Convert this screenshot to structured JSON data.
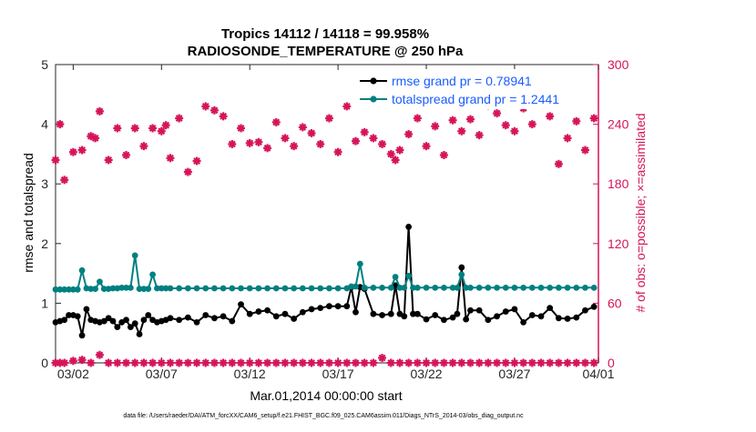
{
  "chart_data": {
    "type": "line",
    "title": [
      "Tropics 14112 / 14118 = 99.958%",
      "RADIOSONDE_TEMPERATURE @ 250 hPa"
    ],
    "xlabel": "Mar.01,2014 00:00:00 start",
    "ylabel_left": "rmse and totalspread",
    "ylabel_right": "# of obs: o=possible; ×=assimilated",
    "xlim": [
      0.5,
      31.25
    ],
    "ylim_left": [
      0,
      5
    ],
    "ylim_right": [
      0,
      300
    ],
    "x_ticks": [
      1.5,
      6.5,
      11.5,
      16.5,
      21.5,
      26.5,
      31.5
    ],
    "x_tick_labels": [
      "03/02",
      "03/07",
      "03/12",
      "03/17",
      "03/22",
      "03/27",
      "04/01"
    ],
    "y_ticks_left": [
      0,
      1,
      2,
      3,
      4,
      5
    ],
    "y_tick_labels_left": [
      "0",
      "1",
      "2",
      "3",
      "4",
      "5"
    ],
    "y_ticks_right": [
      0,
      60,
      120,
      180,
      240,
      300
    ],
    "y_tick_labels_right": [
      "0",
      "60",
      "120",
      "180",
      "240",
      "300"
    ],
    "colors": {
      "rmse": "#000000",
      "spread": "#008080",
      "obs": "#d6145a",
      "right_axis": "#d6145a",
      "legend_text": "#1a5cff"
    },
    "legend": [
      "rmse grand pr = 0.78941",
      "totalspread grand pr = 1.2441"
    ],
    "footnote": "data file: /Users/raeder/DAI/ATM_forcXX/CAM6_setup/f.e21.FHIST_BGC.f09_025.CAM6assim.011/Diags_NTrS_2014-03/obs_diag_output.nc",
    "x": [
      0.5,
      0.75,
      1.0,
      1.25,
      1.5,
      1.75,
      2.0,
      2.25,
      2.5,
      2.75,
      3.0,
      3.25,
      3.5,
      3.75,
      4.0,
      4.25,
      4.5,
      4.75,
      5.0,
      5.25,
      5.5,
      5.75,
      6.0,
      6.25,
      6.5,
      6.75,
      7.0,
      7.5,
      8.0,
      8.5,
      9.0,
      9.5,
      10.0,
      10.5,
      11.0,
      11.5,
      12.0,
      12.5,
      13.0,
      13.5,
      14.0,
      14.5,
      15.0,
      15.5,
      16.0,
      16.5,
      17.0,
      17.25,
      17.5,
      17.75,
      18.0,
      18.5,
      19.0,
      19.5,
      19.75,
      20.0,
      20.25,
      20.5,
      20.75,
      21.0,
      21.5,
      22.0,
      22.5,
      23.0,
      23.25,
      23.5,
      23.75,
      24.0,
      24.5,
      25.0,
      25.5,
      26.0,
      26.5,
      27.0,
      27.5,
      28.0,
      28.5,
      29.0,
      29.5,
      30.0,
      30.5,
      31.0
    ],
    "series": [
      {
        "name": "rmse",
        "values": [
          0.68,
          0.7,
          0.72,
          0.8,
          0.8,
          0.78,
          0.46,
          0.9,
          0.72,
          0.7,
          0.68,
          0.7,
          0.75,
          0.7,
          0.6,
          0.68,
          0.72,
          0.6,
          0.66,
          0.48,
          0.72,
          0.8,
          0.72,
          0.68,
          0.7,
          0.72,
          0.75,
          0.72,
          0.76,
          0.68,
          0.8,
          0.75,
          0.78,
          0.7,
          0.98,
          0.82,
          0.86,
          0.88,
          0.78,
          0.82,
          0.74,
          0.85,
          0.9,
          0.92,
          0.95,
          0.95,
          0.95,
          1.27,
          0.85,
          1.27,
          1.24,
          0.82,
          0.8,
          0.82,
          1.3,
          0.82,
          0.78,
          2.28,
          0.82,
          0.82,
          0.73,
          0.8,
          0.72,
          0.76,
          0.82,
          1.6,
          0.73,
          0.88,
          0.88,
          0.72,
          0.78,
          0.86,
          0.9,
          0.68,
          0.8,
          0.78,
          0.92,
          0.75,
          0.74,
          0.76,
          0.88,
          0.94
        ]
      },
      {
        "name": "totalspread",
        "values": [
          1.23,
          1.23,
          1.23,
          1.23,
          1.23,
          1.23,
          1.55,
          1.25,
          1.24,
          1.24,
          1.36,
          1.24,
          1.24,
          1.25,
          1.25,
          1.26,
          1.26,
          1.26,
          1.8,
          1.24,
          1.24,
          1.24,
          1.48,
          1.25,
          1.25,
          1.25,
          1.25,
          1.25,
          1.25,
          1.25,
          1.25,
          1.25,
          1.25,
          1.25,
          1.25,
          1.25,
          1.25,
          1.25,
          1.25,
          1.25,
          1.25,
          1.25,
          1.25,
          1.25,
          1.25,
          1.25,
          1.25,
          1.28,
          1.28,
          1.66,
          1.26,
          1.26,
          1.26,
          1.26,
          1.44,
          1.26,
          1.26,
          1.46,
          1.26,
          1.26,
          1.26,
          1.26,
          1.26,
          1.26,
          1.26,
          1.48,
          1.26,
          1.26,
          1.26,
          1.26,
          1.26,
          1.26,
          1.26,
          1.26,
          1.26,
          1.26,
          1.26,
          1.26,
          1.26,
          1.26,
          1.26,
          1.26
        ]
      }
    ],
    "obs_assimilated": {
      "x": [
        0.5,
        0.75,
        1.0,
        1.5,
        2.0,
        2.5,
        2.75,
        3.0,
        3.5,
        4.0,
        4.5,
        5.0,
        5.5,
        6.0,
        6.5,
        6.75,
        7.0,
        7.5,
        8.0,
        8.5,
        9.0,
        9.5,
        10.0,
        10.5,
        11.0,
        11.5,
        12.0,
        12.5,
        13.0,
        13.5,
        14.0,
        14.5,
        15.0,
        15.5,
        16.0,
        16.5,
        17.0,
        17.5,
        18.0,
        18.5,
        19.0,
        19.5,
        19.75,
        20.0,
        20.5,
        21.0,
        21.5,
        22.0,
        22.5,
        23.0,
        23.5,
        24.0,
        24.5,
        25.0,
        25.5,
        26.0,
        26.5,
        27.0,
        27.5,
        28.0,
        28.5,
        29.0,
        29.5,
        30.0,
        30.5,
        31.0
      ],
      "values": [
        204,
        240,
        184,
        212,
        214,
        228,
        226,
        253,
        204,
        236,
        209,
        236,
        218,
        236,
        233,
        239,
        206,
        246,
        192,
        203,
        258,
        254,
        248,
        220,
        236,
        221,
        222,
        216,
        242,
        226,
        218,
        237,
        231,
        220,
        246,
        212,
        258,
        223,
        232,
        226,
        220,
        210,
        204,
        214,
        230,
        246,
        218,
        238,
        209,
        244,
        233,
        245,
        229,
        259,
        251,
        239,
        233,
        256,
        240,
        264,
        248,
        200,
        226,
        243,
        214,
        246
      ]
    },
    "obs_possible": {
      "x": [
        0.5,
        0.75,
        1.0,
        1.5,
        2.0,
        2.5,
        3.0,
        3.5,
        4.0,
        4.5,
        5.0,
        5.5,
        6.0,
        6.5,
        7.0,
        7.5,
        8.0,
        8.5,
        9.0,
        9.5,
        10.0,
        10.5,
        11.0,
        11.5,
        12.0,
        12.5,
        13.0,
        13.5,
        14.0,
        14.5,
        15.0,
        15.5,
        16.0,
        16.5,
        17.0,
        17.5,
        18.0,
        18.5,
        19.0,
        19.5,
        20.0,
        20.5,
        21.0,
        21.5,
        22.0,
        22.5,
        23.0,
        23.5,
        24.0,
        24.5,
        25.0,
        25.5,
        26.0,
        26.5,
        27.0,
        27.5,
        28.0,
        28.5,
        29.0,
        29.5,
        30.0,
        30.5,
        31.0
      ],
      "values": [
        0,
        0,
        0,
        2,
        3,
        0,
        8,
        0,
        0,
        0,
        0,
        0,
        0,
        0,
        0,
        0,
        0,
        0,
        0,
        0,
        0,
        0,
        0,
        0,
        0,
        0,
        0,
        0,
        0,
        0,
        0,
        0,
        0,
        0,
        0,
        0,
        0,
        0,
        5,
        0,
        0,
        0,
        0,
        0,
        0,
        0,
        0,
        0,
        0,
        0,
        0,
        0,
        0,
        0,
        0,
        0,
        0,
        0,
        0,
        0,
        0,
        0,
        0
      ]
    }
  }
}
